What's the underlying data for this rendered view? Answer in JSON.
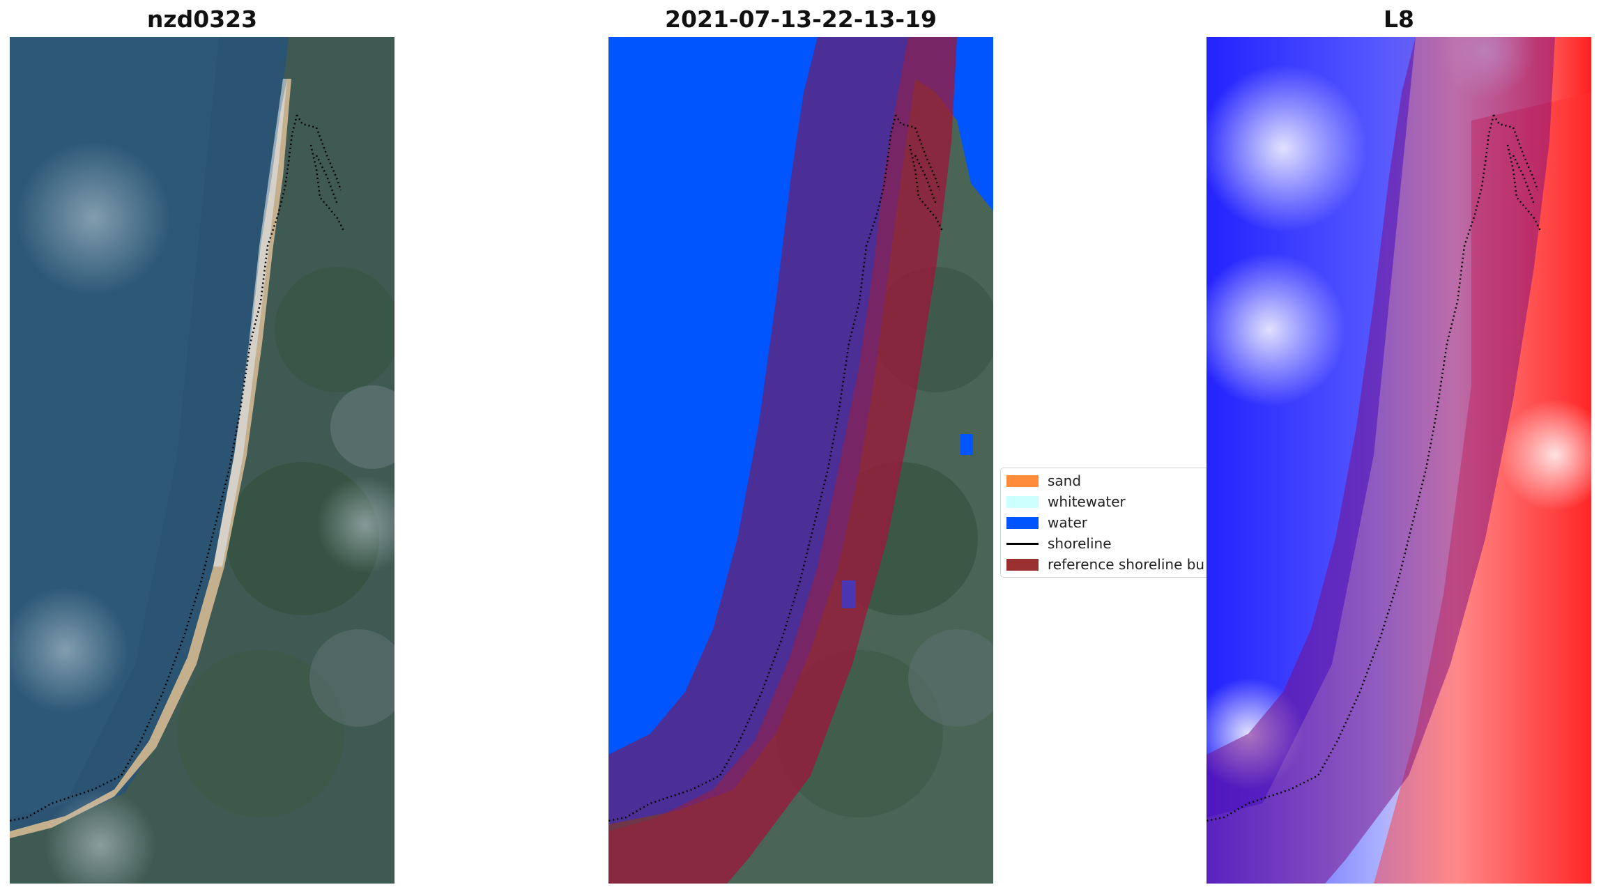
{
  "panels": [
    {
      "title": "nzd0323",
      "kind": "rgb"
    },
    {
      "title": "2021-07-13-22-13-19",
      "kind": "classified"
    },
    {
      "title": "L8",
      "kind": "index"
    }
  ],
  "legend": {
    "items": [
      {
        "label": "sand",
        "color": "#ff8c3a",
        "type": "patch"
      },
      {
        "label": "whitewater",
        "color": "#ccffff",
        "type": "patch"
      },
      {
        "label": "water",
        "color": "#0055ff",
        "type": "patch"
      },
      {
        "label": "shoreline",
        "color": "#000000",
        "type": "line"
      },
      {
        "label": "reference shoreline bu",
        "color": "#9b3030",
        "type": "patch"
      }
    ]
  },
  "colors": {
    "sea": "#28506e",
    "land": "#4a6250",
    "beach": "#c2ab8a",
    "classified_water": "#0055ff",
    "buffer_overlay": "#8a1040",
    "index_low": "#0000ff",
    "index_high": "#ff0000"
  }
}
